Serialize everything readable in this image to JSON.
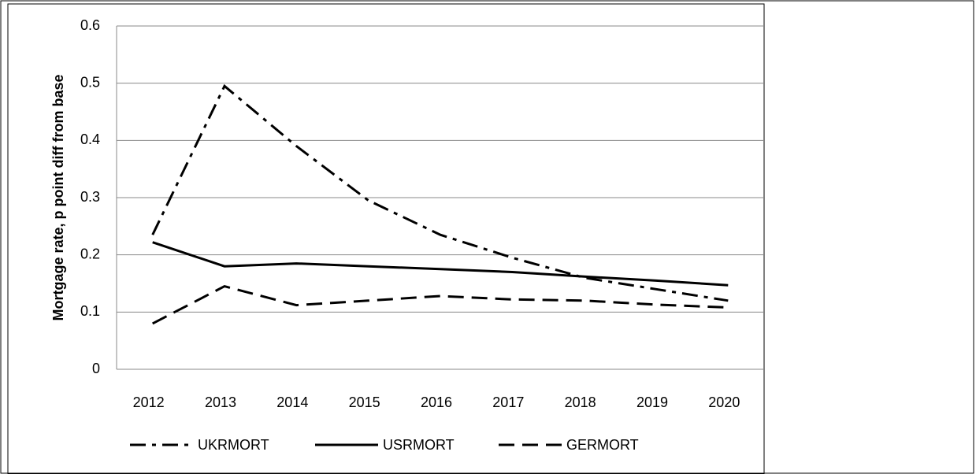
{
  "chart_data": {
    "type": "line",
    "y_label": "Mortgage rate, p point diff from base",
    "categories": [
      "2012",
      "2013",
      "2014",
      "2015",
      "2016",
      "2017",
      "2018",
      "2019",
      "2020"
    ],
    "series": [
      {
        "name": "UKRMORT",
        "color": "#000000",
        "dash": "dash-dot",
        "values": [
          0.235,
          0.495,
          0.39,
          0.295,
          0.235,
          0.195,
          0.16,
          0.14,
          0.12
        ]
      },
      {
        "name": "USRMORT",
        "color": "#000000",
        "dash": "solid",
        "values": [
          0.222,
          0.18,
          0.185,
          0.18,
          0.175,
          0.17,
          0.162,
          0.155,
          0.147
        ]
      },
      {
        "name": "GERMORT",
        "color": "#000000",
        "dash": "dashed",
        "values": [
          0.08,
          0.145,
          0.112,
          0.12,
          0.128,
          0.122,
          0.12,
          0.113,
          0.108
        ]
      }
    ],
    "ylim": [
      0,
      0.6
    ],
    "yticks": [
      0,
      0.1,
      0.2,
      0.3,
      0.4,
      0.5,
      0.6
    ],
    "grid": true,
    "legend": "bottom"
  }
}
